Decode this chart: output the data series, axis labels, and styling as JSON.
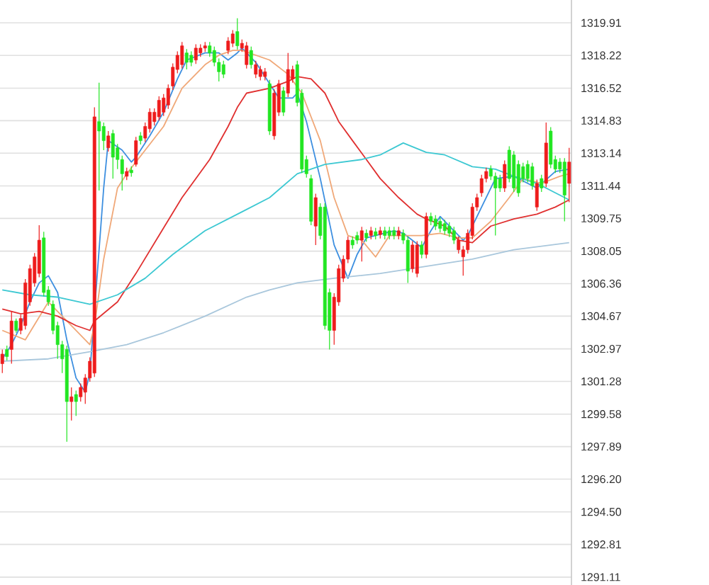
{
  "chart_data": {
    "type": "candlestick",
    "categories": [
      null,
      null,
      null,
      null,
      null,
      null,
      null,
      null,
      null,
      null,
      null,
      null,
      null,
      null,
      null,
      null,
      null,
      null,
      null,
      null,
      null,
      null,
      null,
      null,
      null,
      null,
      null,
      null,
      null,
      null,
      null,
      null,
      null,
      null,
      null,
      null,
      null,
      null,
      null,
      null,
      null,
      null,
      null,
      null,
      null,
      null,
      null,
      null,
      null,
      null,
      null,
      null,
      null,
      null,
      null,
      null,
      null,
      null,
      null,
      null,
      null,
      null,
      null,
      null,
      null,
      null,
      null,
      null,
      null,
      null,
      null,
      null,
      null,
      null,
      null,
      null,
      null,
      null,
      null,
      null,
      null,
      null,
      null,
      null,
      null,
      null,
      null,
      null,
      null,
      null,
      null,
      null,
      null,
      null,
      null,
      null,
      null,
      null,
      null,
      null,
      null,
      null,
      null,
      null,
      null,
      null,
      null,
      null,
      null,
      null,
      null,
      null,
      null,
      null,
      null,
      null,
      null,
      null,
      null,
      null,
      null,
      null,
      null,
      null
    ],
    "ohlc": [
      [
        1302.2,
        1302.94,
        1301.71,
        1302.7
      ],
      [
        1302.94,
        1303.14,
        1302.37,
        1302.57
      ],
      [
        1302.94,
        1304.92,
        1302.2,
        1304.42
      ],
      [
        1304.42,
        1304.55,
        1303.81,
        1303.93
      ],
      [
        1303.93,
        1304.75,
        1303.73,
        1304.55
      ],
      [
        1304.18,
        1306.6,
        1303.98,
        1306.4
      ],
      [
        1305.41,
        1307.34,
        1305.21,
        1307.14
      ],
      [
        1306.4,
        1307.95,
        1306.2,
        1307.75
      ],
      [
        1306.89,
        1309.4,
        1306.69,
        1308.62
      ],
      [
        1308.74,
        1309.06,
        1305.7,
        1305.9
      ],
      [
        1306.03,
        1306.23,
        1305.21,
        1305.41
      ],
      [
        1305.29,
        1305.49,
        1303.73,
        1303.93
      ],
      [
        1304.18,
        1304.38,
        1302.45,
        1303.19
      ],
      [
        1303.19,
        1303.39,
        1301.71,
        1302.45
      ],
      [
        1302.94,
        1303.14,
        1298.14,
        1300.23
      ],
      [
        1300.23,
        1300.97,
        1299.25,
        1300.48
      ],
      [
        1300.6,
        1300.8,
        1299.49,
        1300.23
      ],
      [
        1300.48,
        1301.17,
        1300.23,
        1300.97
      ],
      [
        1300.72,
        1301.66,
        1300.11,
        1301.46
      ],
      [
        1301.46,
        1302.53,
        1301.26,
        1302.33
      ],
      [
        1301.71,
        1315.52,
        1301.51,
        1315.03
      ],
      [
        1314.78,
        1316.8,
        1311.2,
        1314.29
      ],
      [
        1314.53,
        1314.73,
        1313.3,
        1313.79
      ],
      [
        1313.42,
        1314.29,
        1313.22,
        1314.04
      ],
      [
        1314.16,
        1314.36,
        1311.82,
        1312.93
      ],
      [
        1313.42,
        1313.62,
        1312.31,
        1312.81
      ],
      [
        1312.81,
        1313.01,
        1311.2,
        1312.07
      ],
      [
        1311.94,
        1312.39,
        1311.74,
        1312.19
      ],
      [
        1312.26,
        1312.46,
        1311.92,
        1312.12
      ],
      [
        1312.56,
        1313.99,
        1312.44,
        1313.79
      ],
      [
        1314.04,
        1314.24,
        1313.59,
        1313.79
      ],
      [
        1313.92,
        1314.73,
        1313.72,
        1314.53
      ],
      [
        1314.41,
        1315.47,
        1314.21,
        1315.27
      ],
      [
        1314.78,
        1315.47,
        1314.58,
        1315.27
      ],
      [
        1315.03,
        1316.09,
        1314.83,
        1315.89
      ],
      [
        1315.27,
        1316.21,
        1315.07,
        1316.01
      ],
      [
        1315.64,
        1316.71,
        1315.44,
        1316.51
      ],
      [
        1316.63,
        1317.81,
        1316.43,
        1317.61
      ],
      [
        1317.49,
        1318.43,
        1317.29,
        1318.23
      ],
      [
        1317.74,
        1318.92,
        1317.54,
        1318.72
      ],
      [
        1318.35,
        1318.55,
        1317.49,
        1317.86
      ],
      [
        1318.23,
        1318.43,
        1317.66,
        1317.86
      ],
      [
        1317.98,
        1318.8,
        1317.78,
        1318.6
      ],
      [
        1318.35,
        1318.8,
        1318.15,
        1318.6
      ],
      [
        1318.6,
        1318.92,
        1318.4,
        1318.72
      ],
      [
        1318.72,
        1318.92,
        1318.15,
        1318.35
      ],
      [
        1318.48,
        1318.68,
        1317.66,
        1317.86
      ],
      [
        1317.86,
        1318.06,
        1316.87,
        1317.37
      ],
      [
        1317.74,
        1317.94,
        1317.04,
        1317.24
      ],
      [
        1318.48,
        1319.17,
        1318.28,
        1318.97
      ],
      [
        1318.85,
        1319.54,
        1318.65,
        1319.34
      ],
      [
        1319.46,
        1320.15,
        1318.52,
        1318.72
      ],
      [
        1318.6,
        1319.05,
        1318.4,
        1318.85
      ],
      [
        1317.74,
        1318.92,
        1317.54,
        1318.72
      ],
      [
        1318.48,
        1318.68,
        1317.54,
        1317.74
      ],
      [
        1317.24,
        1317.94,
        1317.04,
        1317.74
      ],
      [
        1317.12,
        1317.69,
        1316.92,
        1317.49
      ],
      [
        1317.12,
        1317.57,
        1316.92,
        1317.37
      ],
      [
        1316.75,
        1316.95,
        1314.09,
        1314.29
      ],
      [
        1314.04,
        1316.46,
        1313.84,
        1316.26
      ],
      [
        1315.27,
        1316.95,
        1315.07,
        1316.75
      ],
      [
        1316.38,
        1316.58,
        1315.07,
        1315.27
      ],
      [
        1316.26,
        1318.35,
        1316.06,
        1317.49
      ],
      [
        1317.0,
        1317.69,
        1316.8,
        1317.49
      ],
      [
        1317.74,
        1317.94,
        1315.57,
        1315.77
      ],
      [
        1316.26,
        1316.46,
        1312.11,
        1312.31
      ],
      [
        1312.81,
        1313.01,
        1311.87,
        1312.07
      ],
      [
        1311.82,
        1312.02,
        1309.4,
        1309.6
      ],
      [
        1309.35,
        1311.03,
        1308.37,
        1310.83
      ],
      [
        1310.34,
        1310.54,
        1308.66,
        1308.86
      ],
      [
        1310.34,
        1310.54,
        1303.98,
        1304.18
      ],
      [
        1305.9,
        1306.1,
        1302.94,
        1303.93
      ],
      [
        1303.93,
        1305.86,
        1303.19,
        1305.66
      ],
      [
        1305.41,
        1307.34,
        1305.21,
        1307.14
      ],
      [
        1306.64,
        1307.83,
        1306.44,
        1307.63
      ],
      [
        1307.63,
        1308.82,
        1307.43,
        1308.62
      ],
      [
        1308.62,
        1308.82,
        1308.17,
        1308.37
      ],
      [
        1308.86,
        1309.06,
        1308.42,
        1308.62
      ],
      [
        1308.62,
        1309.31,
        1307.51,
        1309.11
      ],
      [
        1308.98,
        1309.18,
        1308.54,
        1308.74
      ],
      [
        1308.86,
        1309.31,
        1308.66,
        1309.11
      ],
      [
        1309.06,
        1309.26,
        1308.66,
        1308.86
      ],
      [
        1308.91,
        1309.31,
        1308.71,
        1309.11
      ],
      [
        1309.11,
        1309.31,
        1308.66,
        1308.86
      ],
      [
        1309.11,
        1309.31,
        1308.66,
        1308.86
      ],
      [
        1309.11,
        1309.31,
        1308.66,
        1308.86
      ],
      [
        1308.86,
        1309.31,
        1308.66,
        1309.11
      ],
      [
        1308.98,
        1309.18,
        1308.42,
        1308.62
      ],
      [
        1308.62,
        1308.82,
        1306.4,
        1307.01
      ],
      [
        1307.14,
        1308.57,
        1306.94,
        1308.37
      ],
      [
        1306.89,
        1308.57,
        1306.69,
        1308.37
      ],
      [
        1308.37,
        1308.57,
        1307.68,
        1307.88
      ],
      [
        1307.88,
        1310.05,
        1307.68,
        1309.85
      ],
      [
        1309.85,
        1310.05,
        1309.4,
        1309.6
      ],
      [
        1309.72,
        1309.92,
        1309.15,
        1309.35
      ],
      [
        1309.6,
        1309.8,
        1309.03,
        1309.23
      ],
      [
        1309.48,
        1309.68,
        1308.91,
        1309.11
      ],
      [
        1309.35,
        1309.55,
        1308.78,
        1308.98
      ],
      [
        1309.11,
        1309.31,
        1308.42,
        1308.62
      ],
      [
        1308.12,
        1308.82,
        1307.92,
        1308.62
      ],
      [
        1307.75,
        1308.32,
        1306.77,
        1308.12
      ],
      [
        1308.12,
        1309.18,
        1307.92,
        1308.98
      ],
      [
        1308.86,
        1310.54,
        1308.66,
        1310.34
      ],
      [
        1310.34,
        1311.03,
        1310.14,
        1310.83
      ],
      [
        1311.08,
        1312.02,
        1310.88,
        1311.82
      ],
      [
        1311.82,
        1312.39,
        1311.62,
        1312.19
      ],
      [
        1312.31,
        1312.51,
        1311.74,
        1311.94
      ],
      [
        1311.94,
        1312.14,
        1308.86,
        1311.33
      ],
      [
        1311.82,
        1312.02,
        1311.13,
        1311.33
      ],
      [
        1311.33,
        1312.76,
        1311.13,
        1312.56
      ],
      [
        1313.3,
        1313.5,
        1311.62,
        1311.82
      ],
      [
        1313.05,
        1313.25,
        1311.13,
        1311.33
      ],
      [
        1312.56,
        1312.76,
        1310.88,
        1311.08
      ],
      [
        1312.44,
        1312.64,
        1311.62,
        1311.82
      ],
      [
        1312.56,
        1312.76,
        1311.62,
        1311.82
      ],
      [
        1312.44,
        1312.64,
        1311.25,
        1311.45
      ],
      [
        1310.34,
        1311.77,
        1310.14,
        1311.57
      ],
      [
        1311.82,
        1312.02,
        1311.13,
        1311.33
      ],
      [
        1311.57,
        1314.73,
        1311.37,
        1313.67
      ],
      [
        1314.29,
        1314.49,
        1312.36,
        1312.56
      ],
      [
        1312.81,
        1313.01,
        1312.11,
        1312.31
      ],
      [
        1312.68,
        1312.88,
        1312.11,
        1312.31
      ],
      [
        1312.68,
        1312.88,
        1309.6,
        1310.96
      ],
      [
        1311.57,
        1313.42,
        1310.59,
        1312.68
      ]
    ],
    "colors": [
      "#ee1c1c",
      "#22e622",
      "#ee1c1c",
      "#22e622",
      "#ee1c1c",
      "#ee1c1c",
      "#ee1c1c",
      "#ee1c1c",
      "#ee1c1c",
      "#22e622",
      "#22e622",
      "#22e622",
      "#22e622",
      "#22e622",
      "#22e622",
      "#ee1c1c",
      "#22e622",
      "#ee1c1c",
      "#ee1c1c",
      "#ee1c1c",
      "#ee1c1c",
      "#22e622",
      "#22e622",
      "#ee1c1c",
      "#22e622",
      "#22e622",
      "#22e622",
      "#ee1c1c",
      "#22e622",
      "#ee1c1c",
      "#22e622",
      "#ee1c1c",
      "#ee1c1c",
      "#ee1c1c",
      "#ee1c1c",
      "#ee1c1c",
      "#ee1c1c",
      "#ee1c1c",
      "#ee1c1c",
      "#ee1c1c",
      "#22e622",
      "#22e622",
      "#ee1c1c",
      "#ee1c1c",
      "#ee1c1c",
      "#22e622",
      "#22e622",
      "#22e622",
      "#22e622",
      "#ee1c1c",
      "#ee1c1c",
      "#22e622",
      "#ee1c1c",
      "#ee1c1c",
      "#22e622",
      "#ee1c1c",
      "#ee1c1c",
      "#ee1c1c",
      "#22e622",
      "#ee1c1c",
      "#ee1c1c",
      "#22e622",
      "#ee1c1c",
      "#ee1c1c",
      "#22e622",
      "#22e622",
      "#22e622",
      "#22e622",
      "#ee1c1c",
      "#22e622",
      "#22e622",
      "#22e622",
      "#ee1c1c",
      "#ee1c1c",
      "#ee1c1c",
      "#ee1c1c",
      "#22e622",
      "#22e622",
      "#ee1c1c",
      "#22e622",
      "#ee1c1c",
      "#22e622",
      "#ee1c1c",
      "#22e622",
      "#22e622",
      "#22e622",
      "#ee1c1c",
      "#22e622",
      "#22e622",
      "#ee1c1c",
      "#ee1c1c",
      "#22e622",
      "#ee1c1c",
      "#22e622",
      "#22e622",
      "#22e622",
      "#22e622",
      "#22e622",
      "#22e622",
      "#ee1c1c",
      "#ee1c1c",
      "#ee1c1c",
      "#ee1c1c",
      "#ee1c1c",
      "#ee1c1c",
      "#ee1c1c",
      "#22e622",
      "#22e622",
      "#22e622",
      "#ee1c1c",
      "#22e622",
      "#22e622",
      "#22e622",
      "#22e622",
      "#22e622",
      "#22e622",
      "#ee1c1c",
      "#22e622",
      "#ee1c1c",
      "#22e622",
      "#22e622",
      "#22e622",
      "#22e622",
      "#ee1c1c"
    ],
    "series": [
      {
        "type": "line",
        "color": "#3d8fe0",
        "values": [
          1302.45,
          null,
          1303.19,
          null,
          1304.18,
          null,
          1305.41,
          null,
          1306.4,
          null,
          1306.77,
          null,
          1305.9,
          null,
          1303.44,
          null,
          1301.46,
          null,
          1300.72,
          1301.71,
          null,
          null,
          1311.33,
          1313.79,
          null,
          null,
          1313.3,
          null,
          1312.68,
          1312.93,
          null,
          null,
          1314.04,
          null,
          null,
          1315.27,
          null,
          null,
          1317.0,
          null,
          1317.98,
          null,
          null,
          null,
          1318.35,
          null,
          null,
          1318.35,
          null,
          1317.98,
          null,
          1318.35,
          1318.6,
          null,
          null,
          1317.86,
          null,
          null,
          1316.75,
          null,
          1316.01,
          null,
          null,
          1316.01,
          1316.26,
          null,
          1314.78,
          null,
          null,
          1311.82,
          null,
          null,
          1308.37,
          null,
          null,
          1306.64,
          null,
          1307.88,
          null,
          1308.74,
          null,
          null,
          null,
          null,
          null,
          1309.11,
          null,
          1308.98,
          null,
          null,
          null,
          1308.24,
          null,
          1309.11,
          null,
          1309.85,
          null,
          null,
          1309.11,
          null,
          1308.62,
          1308.86,
          null,
          null,
          null,
          null,
          null,
          1311.82,
          null,
          null,
          null,
          1311.94,
          null,
          null,
          null,
          null,
          1311.33,
          null,
          null,
          null,
          1312.19,
          null,
          null,
          1312.31
        ]
      },
      {
        "type": "line",
        "color": "#f0a878",
        "values": [
          1303.93,
          null,
          null,
          null,
          null,
          1303.44,
          null,
          null,
          null,
          null,
          1305.41,
          null,
          null,
          null,
          null,
          null,
          null,
          null,
          null,
          1303.19,
          1304.18,
          null,
          1307.63,
          null,
          null,
          1311.33,
          null,
          1312.07,
          null,
          null,
          null,
          1313.3,
          null,
          null,
          null,
          1314.53,
          null,
          null,
          null,
          1316.51,
          null,
          null,
          null,
          null,
          1317.74,
          null,
          null,
          1318.23,
          null,
          null,
          1318.48,
          null,
          1318.48,
          null,
          null,
          null,
          null,
          null,
          1317.98,
          null,
          null,
          null,
          1317.24,
          null,
          null,
          1316.26,
          null,
          null,
          null,
          1313.79,
          null,
          null,
          1310.83,
          null,
          null,
          1308.86,
          null,
          null,
          1308.62,
          null,
          null,
          1307.75,
          null,
          null,
          1308.86,
          null,
          null,
          1308.86,
          null,
          null,
          null,
          1308.86,
          null,
          null,
          null,
          1308.98,
          null,
          null,
          null,
          1308.74,
          null,
          null,
          1308.74,
          null,
          null,
          null,
          1309.6,
          null,
          null,
          null,
          1310.83,
          null,
          null,
          1311.82,
          null,
          null,
          null,
          1311.57,
          null,
          null,
          null,
          1311.94,
          null,
          1312.07
        ]
      },
      {
        "type": "line",
        "color": "#e03030",
        "values": [
          1305.04,
          null,
          null,
          null,
          1304.79,
          null,
          null,
          null,
          1304.92,
          null,
          null,
          null,
          1304.67,
          null,
          null,
          null,
          1304.18,
          null,
          null,
          1303.93,
          1304.42,
          null,
          null,
          null,
          null,
          1305.41,
          null,
          null,
          null,
          1306.89,
          null,
          null,
          null,
          null,
          1308.86,
          null,
          null,
          null,
          null,
          1310.83,
          null,
          null,
          null,
          null,
          null,
          1312.81,
          null,
          null,
          null,
          1314.53,
          null,
          1315.52,
          null,
          1316.26,
          null,
          null,
          null,
          null,
          1316.51,
          null,
          null,
          null,
          1316.87,
          null,
          1317.12,
          null,
          null,
          1317.0,
          null,
          null,
          1316.26,
          null,
          null,
          1314.78,
          null,
          null,
          1313.79,
          null,
          null,
          1312.81,
          null,
          null,
          1311.82,
          null,
          null,
          null,
          1310.83,
          null,
          null,
          null,
          1309.97,
          null,
          1309.72,
          null,
          null,
          null,
          1309.35,
          null,
          null,
          1308.62,
          null,
          null,
          1308.49,
          null,
          null,
          null,
          1309.35,
          null,
          null,
          null,
          null,
          1309.72,
          null,
          null,
          null,
          null,
          1309.97,
          null,
          null,
          null,
          1310.34,
          null,
          null,
          1310.71
        ]
      },
      {
        "type": "line",
        "color": "#3cc8d2",
        "values": [
          1306.03,
          null,
          null,
          null,
          null,
          null,
          1305.78,
          null,
          null,
          null,
          null,
          null,
          1305.66,
          null,
          null,
          null,
          null,
          null,
          null,
          1305.29,
          null,
          null,
          null,
          null,
          null,
          1305.78,
          null,
          null,
          null,
          null,
          null,
          1306.64,
          null,
          null,
          null,
          null,
          null,
          1307.88,
          null,
          null,
          null,
          null,
          null,
          null,
          1309.11,
          null,
          null,
          null,
          null,
          null,
          null,
          null,
          1310.09,
          null,
          null,
          null,
          null,
          null,
          1310.83,
          null,
          null,
          null,
          null,
          null,
          1312.07,
          null,
          null,
          null,
          null,
          null,
          1312.56,
          null,
          null,
          null,
          null,
          null,
          null,
          null,
          1312.81,
          null,
          null,
          null,
          1313.05,
          null,
          null,
          null,
          null,
          1313.67,
          null,
          null,
          null,
          null,
          1313.18,
          null,
          null,
          null,
          1313.05,
          null,
          null,
          null,
          null,
          null,
          1312.44,
          null,
          null,
          null,
          null,
          1312.31,
          null,
          null,
          null,
          1311.94,
          null,
          null,
          null,
          null,
          1311.57,
          null,
          null,
          null,
          1311.08,
          null,
          null,
          1310.71
        ]
      },
      {
        "type": "line",
        "color": "#a9c7dc",
        "values": [
          1302.33,
          null,
          null,
          null,
          null,
          null,
          null,
          null,
          null,
          null,
          1302.45,
          null,
          null,
          null,
          null,
          null,
          null,
          null,
          null,
          1302.82,
          null,
          null,
          null,
          null,
          null,
          null,
          null,
          1303.19,
          null,
          null,
          null,
          null,
          null,
          null,
          null,
          1303.81,
          null,
          null,
          null,
          null,
          null,
          null,
          null,
          null,
          1304.67,
          null,
          null,
          null,
          null,
          null,
          null,
          null,
          null,
          1305.66,
          null,
          null,
          null,
          null,
          1306.03,
          null,
          null,
          null,
          null,
          null,
          1306.4,
          null,
          null,
          null,
          null,
          null,
          null,
          null,
          1306.64,
          null,
          null,
          null,
          null,
          null,
          null,
          null,
          null,
          null,
          1306.89,
          null,
          null,
          null,
          null,
          null,
          null,
          null,
          null,
          null,
          1307.26,
          null,
          null,
          null,
          null,
          null,
          null,
          null,
          null,
          null,
          1307.63,
          null,
          null,
          null,
          null,
          null,
          null,
          null,
          null,
          1308.12,
          null,
          null,
          null,
          null,
          null,
          null,
          null,
          null,
          null,
          null,
          null,
          1308.49
        ]
      }
    ],
    "ylim": [
      1290.7,
      1321.1
    ],
    "yticks": [
      1319.91,
      1318.22,
      1316.52,
      1314.83,
      1313.14,
      1311.44,
      1309.75,
      1308.05,
      1306.36,
      1304.67,
      1302.97,
      1301.28,
      1299.58,
      1297.89,
      {
        "value": 1296.2,
        "label": "1296.20"
      },
      {
        "value": 1294.5,
        "label": "1294.50"
      },
      1292.81,
      1291.11
    ],
    "grid": "y",
    "tick_labels": "y"
  }
}
